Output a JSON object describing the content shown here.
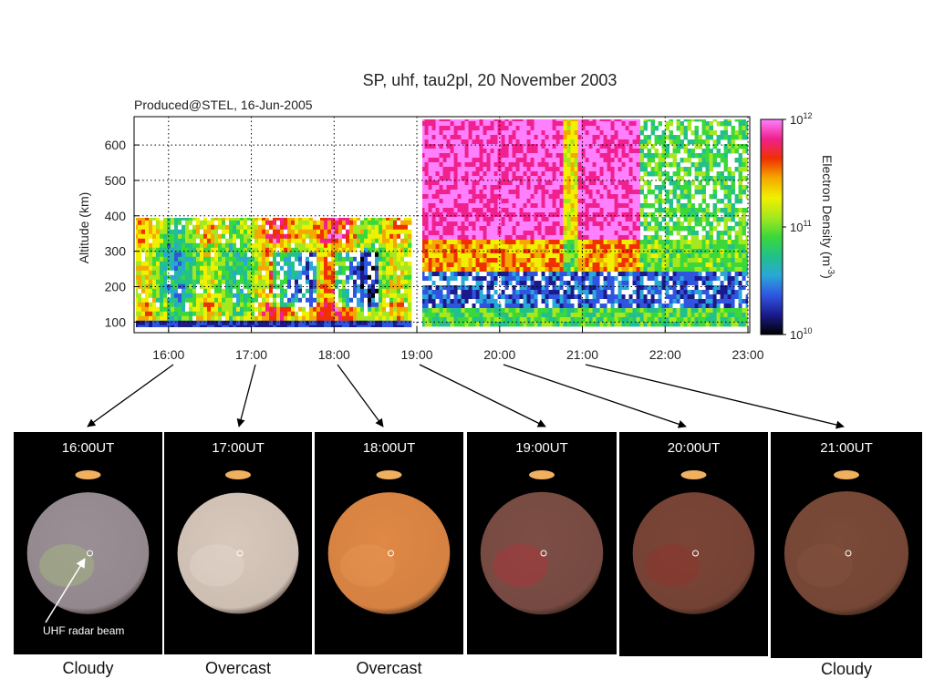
{
  "chart_data": {
    "type": "heatmap",
    "title": "SP, uhf, tau2pl, 20 November 2003",
    "subtitle": "Produced@STEL, 16-Jun-2005",
    "xlabel": "",
    "ylabel": "Altitude (km)",
    "x_ticks": [
      "16:00",
      "17:00",
      "18:00",
      "19:00",
      "20:00",
      "21:00",
      "22:00",
      "23:00"
    ],
    "y_ticks": [
      "100",
      "200",
      "300",
      "400",
      "500",
      "600"
    ],
    "xlim": [
      "15:35",
      "23:00"
    ],
    "ylim": [
      70,
      680
    ],
    "grid": true,
    "colorbar": {
      "label": "Electron Density (m",
      "label_exp": "-3",
      "label_end": ")",
      "scale": "log",
      "range": [
        10000000000.0,
        1000000000000.0
      ],
      "tick_bases": [
        "10",
        "10",
        "10"
      ],
      "tick_exps": [
        "12",
        "11",
        "10"
      ],
      "colors": [
        "#000000",
        "#1a1a8c",
        "#2f55e0",
        "#2aa7d8",
        "#22c08a",
        "#3bd83b",
        "#a6e81e",
        "#f0f000",
        "#f5a800",
        "#f03000",
        "#f0208c",
        "#ff80ff"
      ]
    },
    "segments": [
      {
        "name": "",
        "x_range": [
          "15:35",
          "18:55"
        ],
        "alt_range": [
          90,
          400
        ],
        "typical_density": "1e11"
      },
      {
        "name": "",
        "x_range": [
          "19:03",
          "23:00"
        ],
        "alt_range": [
          90,
          680
        ],
        "typical_density": "1e11-1e12"
      }
    ]
  },
  "panels": [
    {
      "time": "16:00UT",
      "condition": "Cloudy",
      "sky": "#9a8f95",
      "tint": "#a8cc78"
    },
    {
      "time": "17:00UT",
      "condition": "Overcast",
      "sky": "#d8c8bc",
      "tint": "#e8ddd2"
    },
    {
      "time": "18:00UT",
      "condition": "Overcast",
      "sky": "#e08845",
      "tint": "#eb9c58"
    },
    {
      "time": "19:00UT",
      "condition": "",
      "sky": "#7c4e45",
      "tint": "#c32a3a"
    },
    {
      "time": "20:00UT",
      "condition": "",
      "sky": "#7a4537",
      "tint": "#9b2e28"
    },
    {
      "time": "21:00UT",
      "condition": "Cloudy",
      "sky": "#7b4a38",
      "tint": "#8a5542"
    }
  ],
  "annotation": {
    "label": "UHF radar beam"
  }
}
